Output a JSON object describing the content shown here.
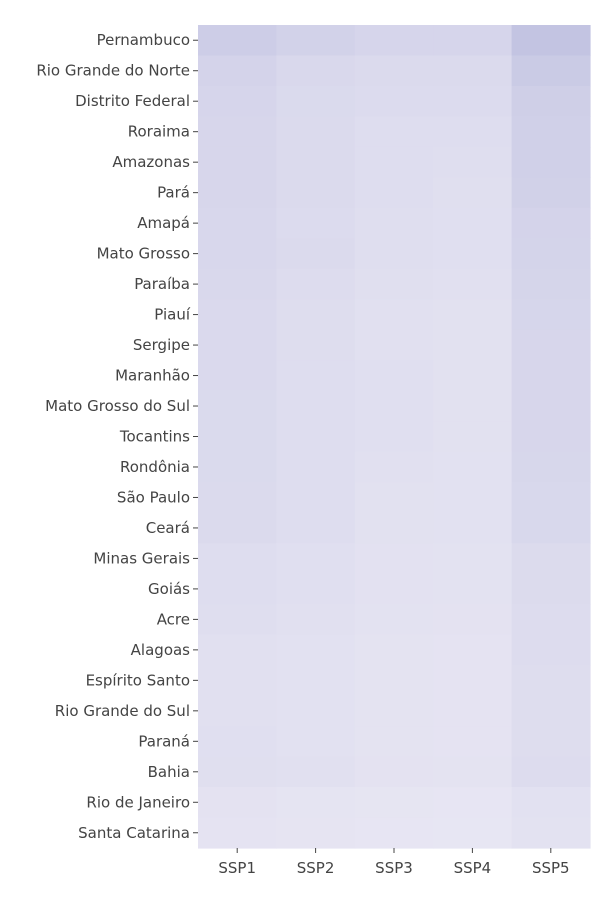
{
  "chart_data": {
    "type": "heatmap",
    "title": "",
    "xlabel": "",
    "ylabel": "",
    "x": [
      "SSP1",
      "SSP2",
      "SSP3",
      "SSP4",
      "SSP5"
    ],
    "y": [
      "Pernambuco",
      "Rio Grande do Norte",
      "Distrito Federal",
      "Roraima",
      "Amazonas",
      "Pará",
      "Amapá",
      "Mato Grosso",
      "Paraíba",
      "Piauí",
      "Sergipe",
      "Maranhão",
      "Mato Grosso do Sul",
      "Tocantins",
      "Rondônia",
      "São Paulo",
      "Ceará",
      "Minas Gerais",
      "Goiás",
      "Acre",
      "Alagoas",
      "Espírito Santo",
      "Rio Grande do Sul",
      "Paraná",
      "Bahia",
      "Rio de Janeiro",
      "Santa Catarina"
    ],
    "z": [
      [
        0.7,
        0.6,
        0.52,
        0.52,
        0.92
      ],
      [
        0.56,
        0.45,
        0.4,
        0.4,
        0.76
      ],
      [
        0.52,
        0.42,
        0.38,
        0.38,
        0.66
      ],
      [
        0.5,
        0.4,
        0.33,
        0.33,
        0.63
      ],
      [
        0.5,
        0.4,
        0.33,
        0.31,
        0.63
      ],
      [
        0.5,
        0.4,
        0.33,
        0.3,
        0.62
      ],
      [
        0.47,
        0.38,
        0.31,
        0.29,
        0.56
      ],
      [
        0.47,
        0.4,
        0.31,
        0.29,
        0.55
      ],
      [
        0.45,
        0.37,
        0.3,
        0.28,
        0.53
      ],
      [
        0.43,
        0.35,
        0.28,
        0.26,
        0.51
      ],
      [
        0.43,
        0.35,
        0.28,
        0.26,
        0.5
      ],
      [
        0.43,
        0.33,
        0.29,
        0.26,
        0.5
      ],
      [
        0.42,
        0.33,
        0.29,
        0.26,
        0.49
      ],
      [
        0.42,
        0.33,
        0.29,
        0.26,
        0.5
      ],
      [
        0.42,
        0.33,
        0.27,
        0.25,
        0.48
      ],
      [
        0.41,
        0.33,
        0.26,
        0.25,
        0.46
      ],
      [
        0.41,
        0.33,
        0.26,
        0.25,
        0.46
      ],
      [
        0.33,
        0.29,
        0.24,
        0.23,
        0.39
      ],
      [
        0.33,
        0.29,
        0.24,
        0.23,
        0.39
      ],
      [
        0.31,
        0.27,
        0.23,
        0.22,
        0.37
      ],
      [
        0.28,
        0.25,
        0.21,
        0.2,
        0.37
      ],
      [
        0.28,
        0.25,
        0.21,
        0.2,
        0.35
      ],
      [
        0.28,
        0.25,
        0.21,
        0.2,
        0.35
      ],
      [
        0.29,
        0.25,
        0.21,
        0.2,
        0.35
      ],
      [
        0.3,
        0.27,
        0.22,
        0.21,
        0.36
      ],
      [
        0.22,
        0.19,
        0.16,
        0.15,
        0.25
      ],
      [
        0.2,
        0.18,
        0.15,
        0.14,
        0.23
      ]
    ],
    "colorscale": {
      "low": "#eeecf6",
      "high": "#bfc0e0"
    },
    "colorbar": false,
    "grid": false,
    "legend": "none"
  }
}
